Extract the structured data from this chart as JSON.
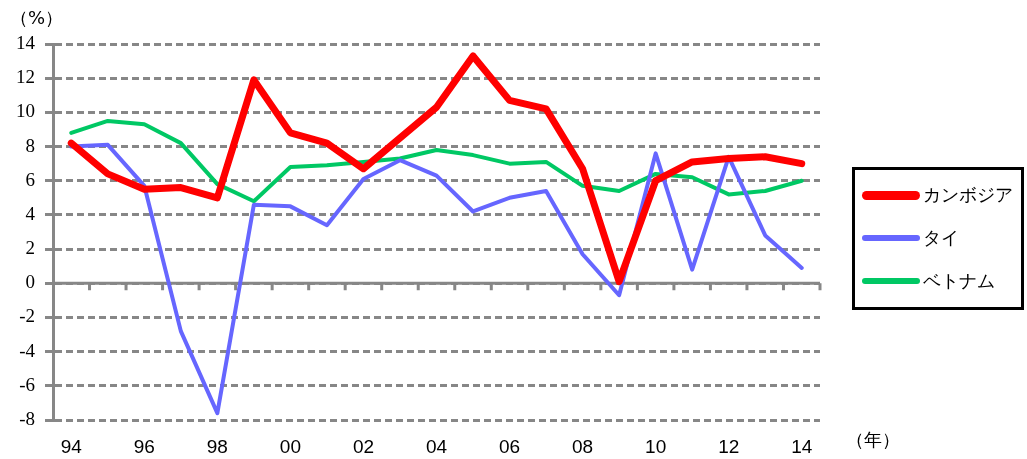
{
  "chart_data": {
    "type": "line",
    "xlabel": "（年）",
    "ylabel": "（%）",
    "categories": [
      "94",
      null,
      "96",
      null,
      "98",
      null,
      "00",
      null,
      "02",
      null,
      "04",
      null,
      "06",
      null,
      "08",
      null,
      "10",
      null,
      "12",
      null,
      "14"
    ],
    "ylim": [
      -8,
      14
    ],
    "yticks": [
      -8,
      -6,
      -4,
      -2,
      0,
      2,
      4,
      6,
      8,
      10,
      12,
      14
    ],
    "grid": "y",
    "legend": "right",
    "marker": "none",
    "line_style": "solid",
    "series": [
      {
        "name": "カンボジア",
        "color": "#ff0000",
        "values": [
          8.2,
          6.4,
          5.5,
          5.6,
          5.0,
          11.9,
          8.8,
          8.2,
          6.7,
          8.5,
          10.3,
          13.3,
          10.7,
          10.2,
          6.7,
          0.1,
          6.0,
          7.1,
          7.3,
          7.4,
          7.0
        ]
      },
      {
        "name": "タイ",
        "color": "#6666ff",
        "values": [
          8.0,
          8.1,
          5.7,
          -2.8,
          -7.6,
          4.6,
          4.5,
          3.4,
          6.1,
          7.2,
          6.3,
          4.2,
          5.0,
          5.4,
          1.7,
          -0.7,
          7.6,
          0.8,
          7.4,
          2.8,
          0.9
        ]
      },
      {
        "name": "ベトナム",
        "color": "#00c864",
        "values": [
          8.8,
          9.5,
          9.3,
          8.2,
          5.8,
          4.8,
          6.8,
          6.9,
          7.1,
          7.3,
          7.8,
          7.5,
          7.0,
          7.1,
          5.7,
          5.4,
          6.4,
          6.2,
          5.2,
          5.4,
          6.0
        ]
      }
    ]
  }
}
